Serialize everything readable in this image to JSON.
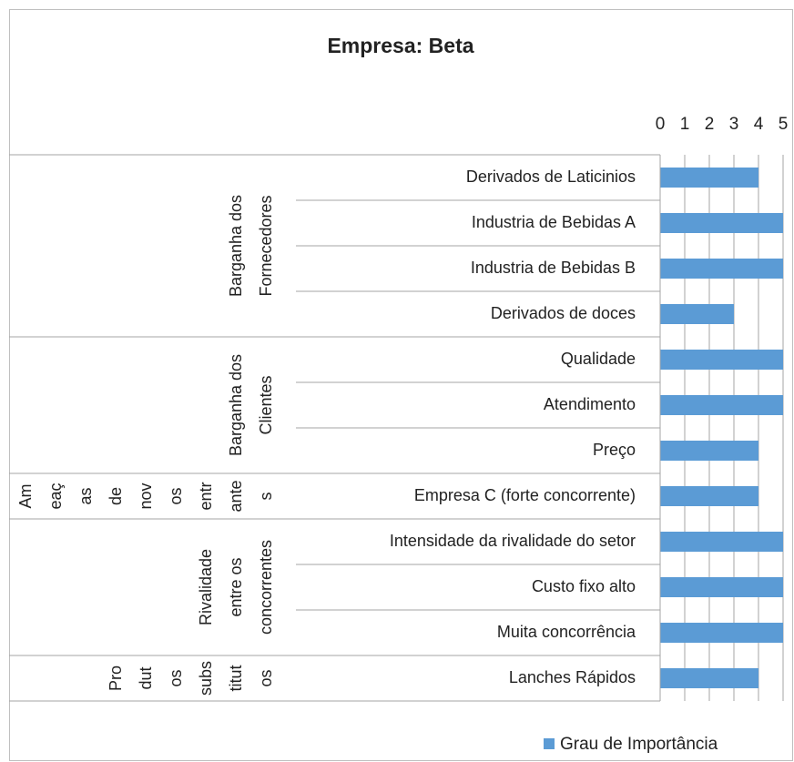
{
  "chart_data": {
    "type": "bar",
    "orientation": "horizontal",
    "title": "Empresa: Beta",
    "groups": [
      {
        "lines": [
          "Barganha dos",
          "Fornecedores"
        ],
        "count": 4
      },
      {
        "lines": [
          "Barganha dos",
          "Clientes"
        ],
        "count": 3
      },
      {
        "lines": [
          "Am",
          "eaç",
          "as",
          "de",
          "nov",
          "os",
          "entr",
          "ante",
          "s"
        ],
        "count": 1
      },
      {
        "lines": [
          "Rivalidade",
          "entre os",
          "concorrentes"
        ],
        "count": 3
      },
      {
        "lines": [
          "Pro",
          "dut",
          "os",
          "subs",
          "titut",
          "os"
        ],
        "count": 1
      }
    ],
    "categories": [
      "Derivados de Laticinios",
      "Industria de Bebidas A",
      "Industria de Bebidas B",
      "Derivados de doces",
      "Qualidade",
      "Atendimento",
      "Preço",
      "Empresa C (forte concorrente)",
      "Intensidade da rivalidade do setor",
      "Custo fixo alto",
      "Muita concorrência",
      "Lanches Rápidos"
    ],
    "series": [
      {
        "name": "Grau de Importância",
        "color": "#5b9bd5",
        "values": [
          4,
          5,
          5,
          3,
          5,
          5,
          4,
          4,
          5,
          5,
          5,
          4
        ]
      }
    ],
    "xlim": [
      0,
      5
    ],
    "xticks": [
      0,
      1,
      2,
      3,
      4,
      5
    ],
    "grid": true,
    "legend": "bottom-right"
  }
}
